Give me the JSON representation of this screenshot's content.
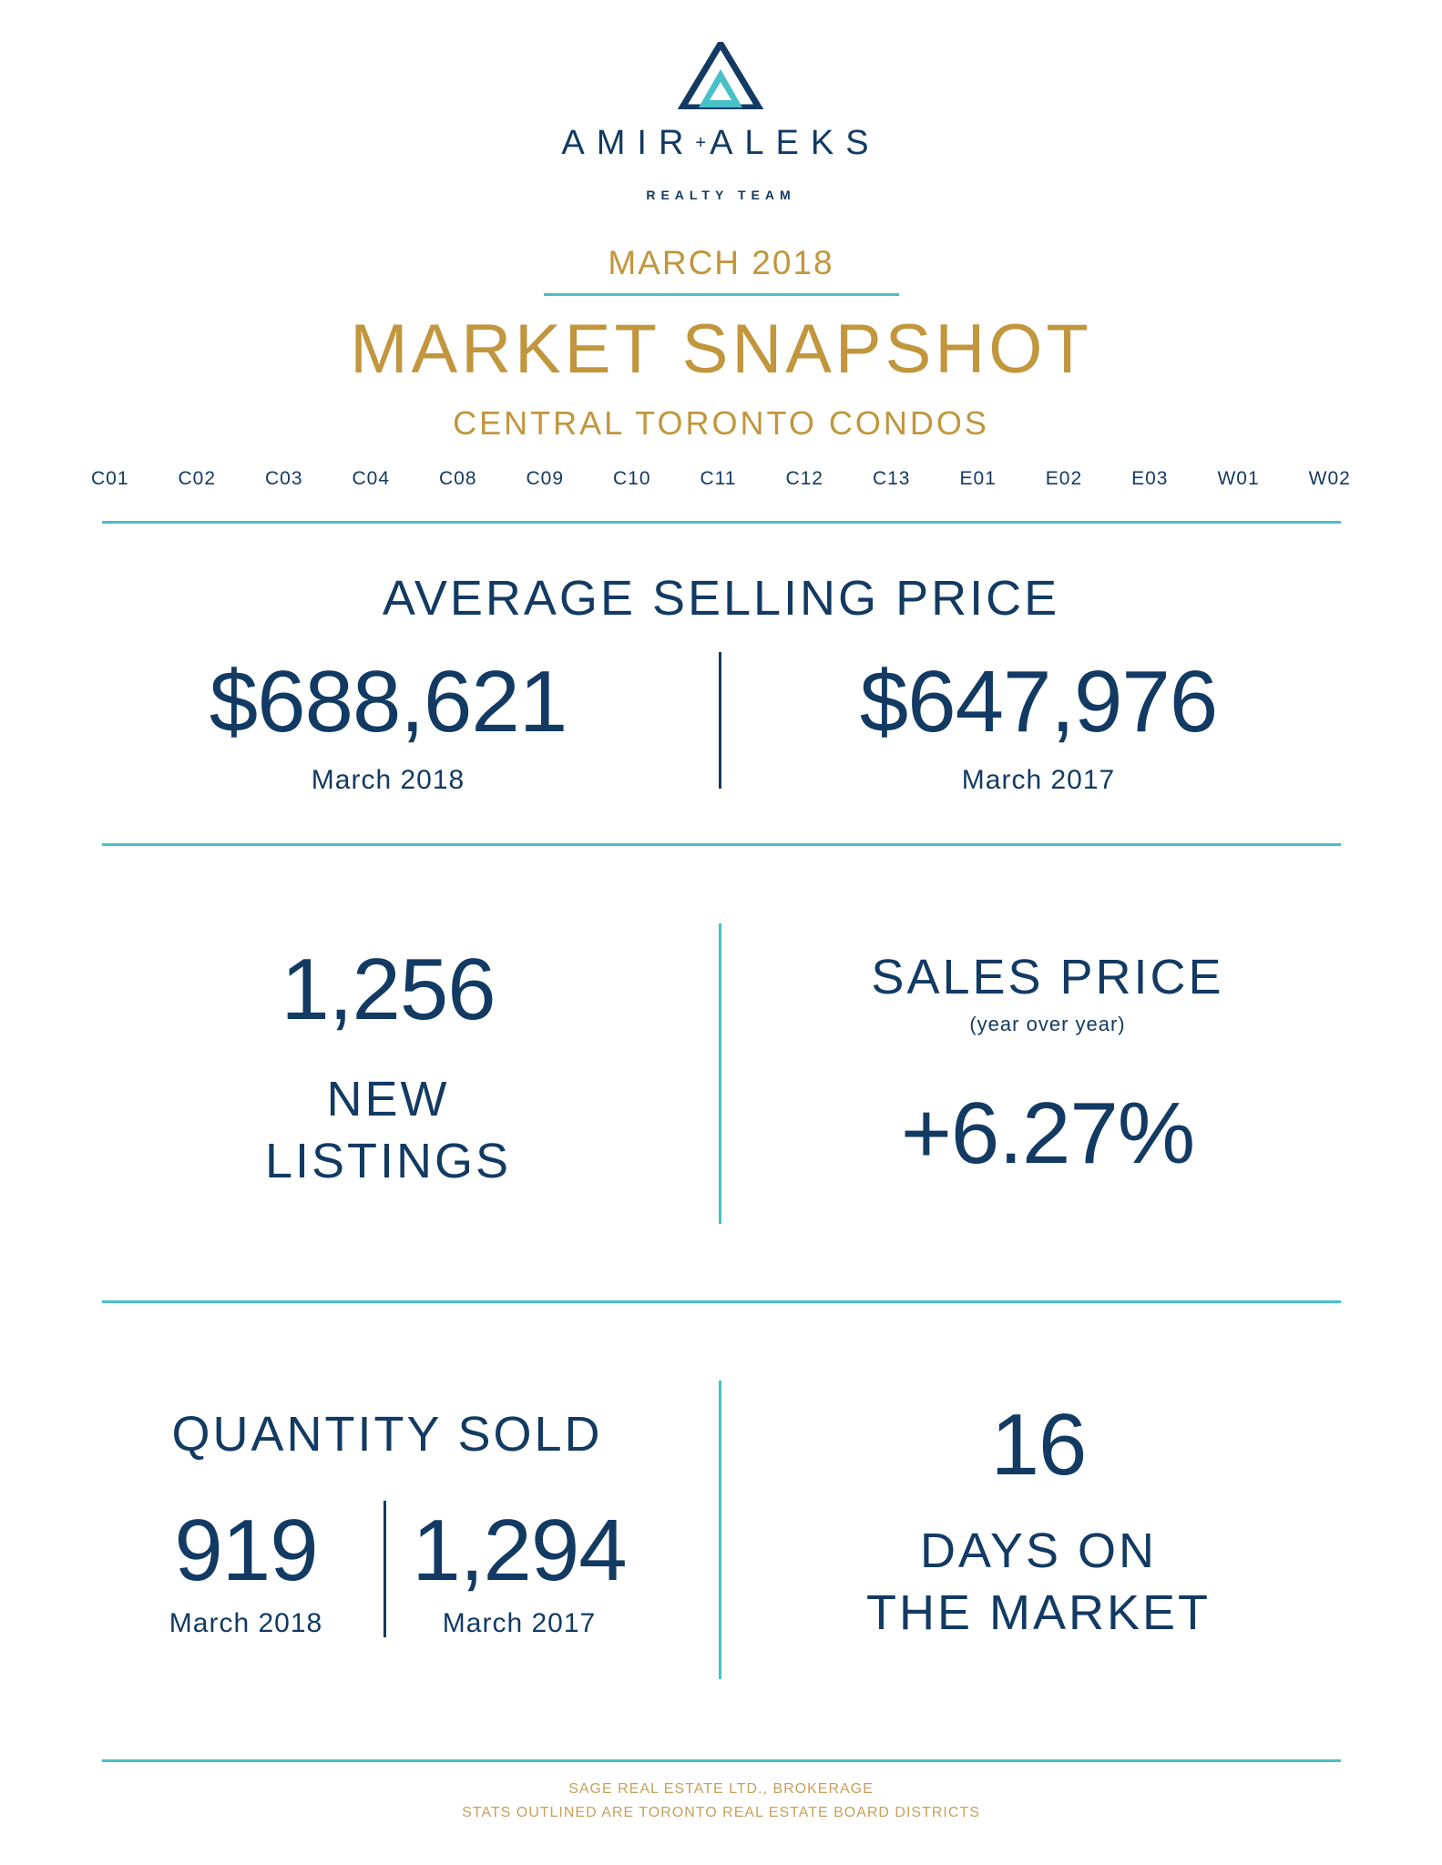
{
  "header": {
    "brand_left": "AMIR",
    "brand_plus": "+",
    "brand_right": "ALEKS",
    "sub_brand": "REALTY TEAM",
    "month": "MARCH 2018",
    "title": "MARKET SNAPSHOT",
    "subtitle": "CENTRAL TORONTO CONDOS"
  },
  "districts": [
    "C01",
    "C02",
    "C03",
    "C04",
    "C08",
    "C09",
    "C10",
    "C11",
    "C12",
    "C13",
    "E01",
    "E02",
    "E03",
    "W01",
    "W02"
  ],
  "average_selling_price": {
    "heading": "AVERAGE SELLING PRICE",
    "current": {
      "value": "$688,621",
      "label": "March 2018"
    },
    "previous": {
      "value": "$647,976",
      "label": "March 2017"
    }
  },
  "new_listings": {
    "value": "1,256",
    "label_line1": "NEW",
    "label_line2": "LISTINGS"
  },
  "sales_price": {
    "heading": "SALES PRICE",
    "note": "(year over year)",
    "value": "+6.27%"
  },
  "quantity_sold": {
    "heading": "QUANTITY SOLD",
    "current": {
      "value": "919",
      "label": "March 2018"
    },
    "previous": {
      "value": "1,294",
      "label": "March 2017"
    }
  },
  "days_on_market": {
    "value": "16",
    "label_line1": "DAYS ON",
    "label_line2": "THE MARKET"
  },
  "footer": {
    "line1": "SAGE REAL ESTATE LTD., BROKERAGE",
    "line2": "STATS OUTLINED ARE TORONTO REAL ESTATE BOARD DISTRICTS"
  },
  "colors": {
    "navy": "#123a63",
    "gold": "#c1963d",
    "teal": "#47c1c7"
  }
}
